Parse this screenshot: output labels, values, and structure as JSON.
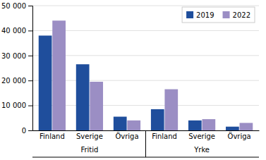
{
  "chart_data": {
    "type": "bar",
    "categories": [
      "Finland",
      "Sverige",
      "Övriga",
      "Finland",
      "Sverige",
      "Övriga"
    ],
    "annotations": [
      "Fritid",
      "Yrke"
    ],
    "series": [
      {
        "name": "2019",
        "color": "#1f4e9c",
        "values": [
          38000,
          26500,
          5500,
          8500,
          4000,
          1500
        ]
      },
      {
        "name": "2022",
        "color": "#9b8ec4",
        "values": [
          44000,
          19500,
          4000,
          16500,
          4500,
          3000
        ]
      }
    ],
    "ylim": [
      0,
      50000
    ],
    "yticks": [
      0,
      {
        "value": 10000,
        "label": "10 000"
      },
      {
        "value": 20000,
        "label": "20 000"
      },
      {
        "value": 30000,
        "label": "30 000"
      },
      {
        "value": 40000,
        "label": "40 000"
      },
      {
        "value": 50000,
        "label": "50 000"
      }
    ],
    "grid": true,
    "legend": "upper right"
  }
}
